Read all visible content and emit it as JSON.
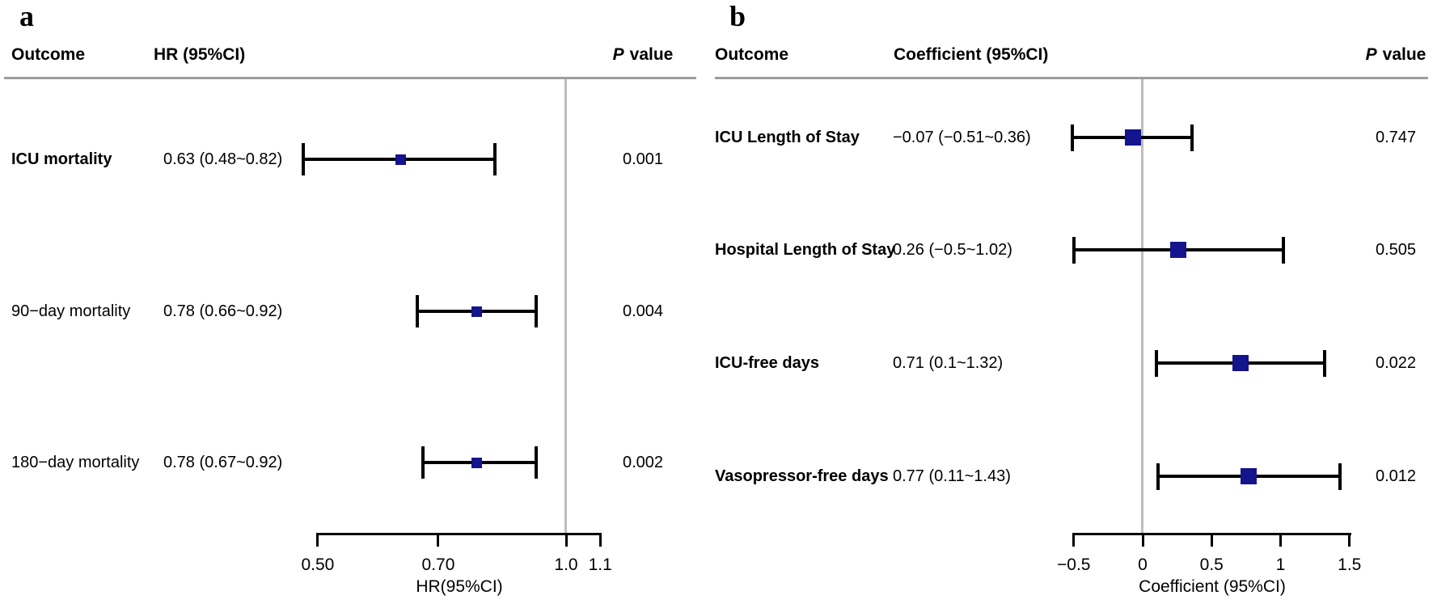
{
  "colors": {
    "marker": "#14148c",
    "reference_line": "#bdbdbd",
    "header_rule": "#9c9c9c",
    "text": "#000000"
  },
  "chart_data": [
    {
      "type": "forest",
      "panel_label": "a",
      "columns": {
        "outcome": "Outcome",
        "estimate": "HR (95%CI)",
        "p_symbol": "P",
        "p_word": "value"
      },
      "axis": {
        "title": "HR(95%CI)",
        "scale": "log",
        "ref_value": 1.0,
        "range": [
          0.5,
          1.1
        ],
        "ticks": [
          {
            "label": "0.50",
            "value": 0.5
          },
          {
            "label": "0.70",
            "value": 0.7
          },
          {
            "label": "1.0",
            "value": 1.0
          },
          {
            "label": "1.1",
            "value": 1.1
          }
        ]
      },
      "rows": [
        {
          "label": "ICU mortality",
          "bold": true,
          "estimate": "0.63 (0.48~0.82)",
          "value": 0.63,
          "ci_low": 0.48,
          "ci_high": 0.82,
          "p_value": "0.001"
        },
        {
          "label": "90−day mortality",
          "bold": false,
          "estimate": "0.78 (0.66~0.92)",
          "value": 0.78,
          "ci_low": 0.66,
          "ci_high": 0.92,
          "p_value": "0.004"
        },
        {
          "label": "180−day mortality",
          "bold": false,
          "estimate": "0.78 (0.67~0.92)",
          "value": 0.78,
          "ci_low": 0.67,
          "ci_high": 0.92,
          "p_value": "0.002"
        }
      ]
    },
    {
      "type": "forest",
      "panel_label": "b",
      "columns": {
        "outcome": "Outcome",
        "estimate": "Coefficient (95%CI)",
        "p_symbol": "P",
        "p_word": "value"
      },
      "axis": {
        "title": "Coefficient (95%CI)",
        "scale": "linear",
        "ref_value": 0,
        "range": [
          -0.5,
          1.5
        ],
        "ticks": [
          {
            "label": "−0.5",
            "value": -0.5
          },
          {
            "label": "0",
            "value": 0
          },
          {
            "label": "0.5",
            "value": 0.5
          },
          {
            "label": "1",
            "value": 1
          },
          {
            "label": "1.5",
            "value": 1.5
          }
        ]
      },
      "rows": [
        {
          "label": "ICU Length of Stay",
          "bold": true,
          "estimate": "−0.07 (−0.51~0.36)",
          "value": -0.07,
          "ci_low": -0.51,
          "ci_high": 0.36,
          "p_value": "0.747"
        },
        {
          "label": "Hospital Length of Stay",
          "bold": true,
          "estimate": "0.26 (−0.5~1.02)",
          "value": 0.26,
          "ci_low": -0.5,
          "ci_high": 1.02,
          "p_value": "0.505"
        },
        {
          "label": "ICU-free days",
          "bold": true,
          "estimate": "0.71 (0.1~1.32)",
          "value": 0.71,
          "ci_low": 0.1,
          "ci_high": 1.32,
          "p_value": "0.022"
        },
        {
          "label": "Vasopressor-free days",
          "bold": true,
          "estimate": "0.77 (0.11~1.43)",
          "value": 0.77,
          "ci_low": 0.11,
          "ci_high": 1.43,
          "p_value": "0.012"
        }
      ]
    }
  ]
}
